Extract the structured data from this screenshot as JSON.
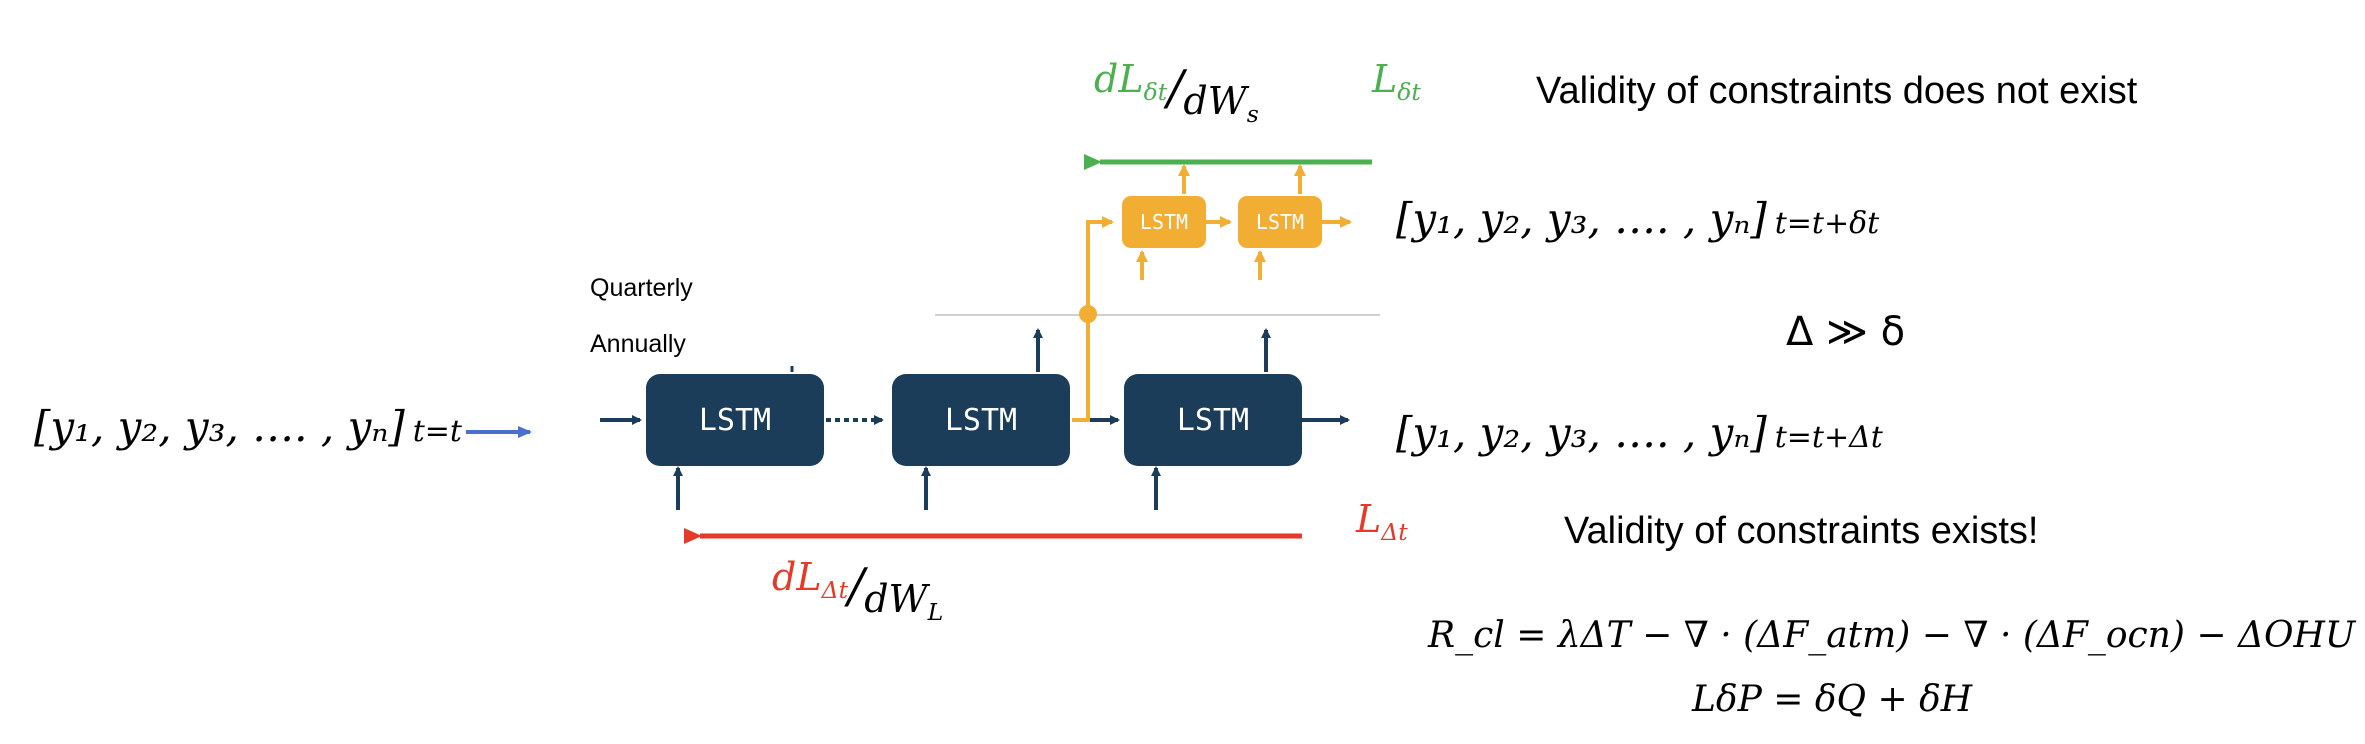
{
  "colors": {
    "lstm_main": "#1b3d5a",
    "lstm_small": "#f2ad33",
    "green": "#4caf50",
    "red": "#e53a2a",
    "blue": "#4a6fd1",
    "separator": "#cfcfcf"
  },
  "labels": {
    "quarterly": "Quarterly",
    "annually": "Annually",
    "lstm": "LSTM",
    "validity_not_exist": "Validity of constraints does not exist",
    "validity_exists": "Validity of constraints exists!",
    "delta_relation": "Δ ≫  δ"
  },
  "sequences": {
    "body": "[y₁, y₂, y₃, …. , yₙ]",
    "input_sub": "t=t",
    "small_sub": "t=t+δt",
    "large_sub": "t=t+Δt"
  },
  "losses": {
    "green_num": "dL",
    "green_num_sub": "δt",
    "green_den": "dW",
    "green_den_sub": "s",
    "green_L": "L",
    "green_L_sub": "δt",
    "red_num": "dL",
    "red_num_sub": "Δt",
    "red_den": "dW",
    "red_den_sub": "L",
    "red_L": "L",
    "red_L_sub": "Δt",
    "slash": "/"
  },
  "equations": {
    "eq1": "R_cl = λΔT − ∇ · (ΔF_atm) − ∇ · (ΔF_ocn) − ΔOHU",
    "eq2": "LδP = δQ + δH"
  }
}
